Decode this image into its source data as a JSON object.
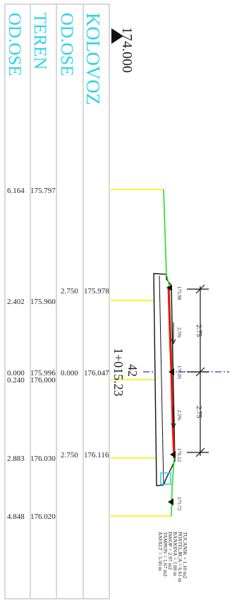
{
  "headers": {
    "kolovoz": "KOLOVOZ",
    "od_ose_top": "OD.OSE",
    "teren": "TEREN",
    "od_ose_bottom": "OD.OSE"
  },
  "datum_elevation": "174.000",
  "station": {
    "number": "42",
    "chainage": "1+015.23"
  },
  "terrain_rows": [
    {
      "offset": "6.164",
      "elevation": "175.797"
    },
    {
      "offset": "2.402",
      "elevation": "175.960"
    },
    {
      "offset": "0.000",
      "elevation": "175.996"
    },
    {
      "offset": "0.240",
      "elevation": "176.000"
    },
    {
      "offset": "2.883",
      "elevation": "176.030"
    },
    {
      "offset": "4.848",
      "elevation": "176.020"
    }
  ],
  "road_rows": [
    {
      "offset": "2.750",
      "elevation": "175.978"
    },
    {
      "offset": "0.000",
      "elevation": "176.047"
    },
    {
      "offset": "2.750",
      "elevation": "176.116"
    }
  ],
  "section_labels": {
    "edge_left": "175.98",
    "axis": "176.05",
    "edge_right": "176.12",
    "ditch": "175.72",
    "slope_left": "2.5%",
    "slope_right": "2.5%",
    "dim_left": "2.75",
    "dim_right": "2.75"
  },
  "quantities": [
    "TUCANIK = 1.10 m2",
    "POSTELJICA = 6.61 m",
    "BANKINA = 1.00 m",
    "ISKOP = 2.97 m2",
    "TAMPON = 1.67 m2",
    "ASFALT = 5.50 m"
  ],
  "colors": {
    "header_text": "#2ad4e6",
    "grid": "#c8c8c8",
    "terrain_line": "#22dd22",
    "pavement_line": "#ee1111",
    "leader_line": "#f2f200",
    "axis_line": "#2b2bd6"
  }
}
